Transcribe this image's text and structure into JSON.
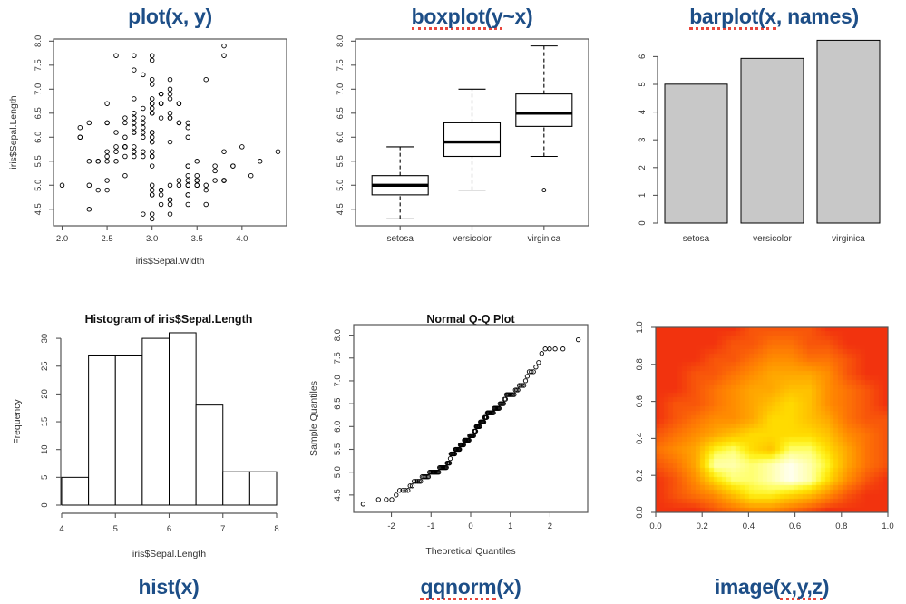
{
  "colors": {
    "title_blue": "#1d4e87",
    "underline_red": "#e8453b",
    "axis_line": "#555555",
    "tick_text": "#333333",
    "bar_gray": "#c8c8c8",
    "heat_palette": [
      "#f2330e",
      "#f8560a",
      "#fd7305",
      "#ff8d00",
      "#ffa700",
      "#ffc100",
      "#ffdb00",
      "#fff320",
      "#ffff70",
      "#ffffae",
      "#fffff0"
    ]
  },
  "captions": [
    {
      "pre": "plot(x, y)",
      "mid": "",
      "post": ""
    },
    {
      "pre": "",
      "mid": "boxplot(y",
      "post": "~x)"
    },
    {
      "pre": "",
      "mid": "barplot(x",
      "post": ", names)"
    },
    {
      "pre": "hist(x)",
      "mid": "",
      "post": ""
    },
    {
      "pre": "",
      "mid": "qqnorm",
      "post": "(x)"
    },
    {
      "pre": "image(",
      "mid": "x,y,z",
      "post": ")"
    }
  ],
  "chart_data": [
    {
      "type": "scatter",
      "title": "plot(x, y)",
      "xlabel": "iris$Sepal.Width",
      "ylabel": "iris$Sepal.Length",
      "xlim": [
        1.904,
        4.496
      ],
      "ylim": [
        4.156,
        8.044
      ],
      "xticks": [
        2.0,
        2.5,
        3.0,
        3.5,
        4.0
      ],
      "xtick_labels": [
        "2.0",
        "2.5",
        "3.0",
        "3.5",
        "4.0"
      ],
      "yticks": [
        4.5,
        5.0,
        5.5,
        6.0,
        6.5,
        7.0,
        7.5,
        8.0
      ],
      "ytick_labels": [
        "4.5",
        "5.0",
        "5.5",
        "6.0",
        "6.5",
        "7.0",
        "7.5",
        "8.0"
      ],
      "x": [
        3.5,
        3.0,
        3.2,
        3.1,
        3.6,
        3.9,
        3.4,
        3.4,
        2.9,
        3.1,
        3.7,
        3.4,
        3.0,
        3.0,
        4.0,
        4.4,
        3.9,
        3.5,
        3.8,
        3.8,
        3.4,
        3.7,
        3.6,
        3.3,
        3.4,
        3.0,
        3.4,
        3.5,
        3.4,
        3.2,
        3.1,
        3.4,
        4.1,
        4.2,
        3.1,
        3.2,
        3.5,
        3.6,
        3.0,
        3.4,
        3.5,
        2.3,
        3.2,
        3.5,
        3.8,
        3.0,
        3.8,
        3.2,
        3.7,
        3.3,
        3.2,
        3.2,
        3.1,
        2.3,
        2.8,
        2.8,
        3.3,
        2.4,
        2.9,
        2.7,
        2.0,
        3.0,
        2.2,
        2.9,
        2.9,
        3.1,
        3.0,
        2.7,
        2.2,
        2.5,
        3.2,
        2.8,
        2.5,
        2.8,
        2.9,
        3.0,
        2.8,
        3.0,
        2.9,
        2.6,
        2.4,
        2.4,
        2.7,
        2.7,
        3.0,
        3.4,
        3.1,
        2.3,
        3.0,
        2.5,
        2.6,
        3.0,
        2.6,
        2.3,
        2.7,
        3.0,
        2.9,
        2.9,
        2.5,
        2.8,
        3.3,
        2.7,
        3.0,
        2.9,
        3.0,
        3.0,
        2.5,
        2.9,
        2.5,
        3.6,
        3.2,
        2.7,
        3.0,
        2.5,
        2.8,
        3.2,
        3.0,
        3.8,
        2.6,
        2.2,
        3.2,
        2.8,
        2.8,
        2.7,
        3.3,
        3.2,
        2.8,
        3.0,
        2.8,
        3.0,
        2.8,
        3.8,
        2.8,
        2.8,
        2.6,
        3.0,
        3.4,
        3.1,
        3.0,
        3.1,
        3.1,
        3.1,
        2.7,
        3.2,
        3.3,
        3.0,
        2.5,
        3.0,
        3.4,
        3.0
      ],
      "y": [
        5.1,
        4.9,
        4.7,
        4.6,
        5.0,
        5.4,
        4.6,
        5.0,
        4.4,
        4.9,
        5.4,
        4.8,
        4.8,
        4.3,
        5.8,
        5.7,
        5.4,
        5.1,
        5.7,
        5.1,
        5.4,
        5.1,
        4.6,
        5.1,
        4.8,
        5.0,
        5.0,
        5.2,
        5.2,
        4.7,
        4.8,
        5.4,
        5.2,
        5.5,
        4.9,
        5.0,
        5.5,
        4.9,
        4.4,
        5.1,
        5.0,
        4.5,
        4.4,
        5.0,
        5.1,
        4.8,
        5.1,
        4.6,
        5.3,
        5.0,
        7.0,
        6.4,
        6.9,
        5.5,
        6.5,
        5.7,
        6.3,
        4.9,
        6.6,
        5.2,
        5.0,
        5.9,
        6.0,
        6.1,
        5.6,
        6.7,
        5.6,
        5.8,
        6.2,
        5.6,
        5.9,
        6.1,
        6.3,
        6.1,
        6.4,
        6.6,
        6.8,
        6.7,
        6.0,
        5.7,
        5.5,
        5.5,
        5.8,
        6.0,
        5.4,
        6.0,
        6.7,
        6.3,
        5.6,
        5.5,
        5.5,
        6.1,
        5.8,
        5.0,
        5.6,
        5.7,
        5.7,
        6.2,
        5.1,
        5.7,
        6.3,
        5.8,
        7.1,
        6.3,
        6.5,
        7.6,
        4.9,
        7.3,
        6.7,
        7.2,
        6.5,
        6.4,
        6.8,
        5.7,
        5.8,
        6.4,
        6.5,
        7.7,
        7.7,
        6.0,
        6.9,
        5.6,
        7.7,
        6.3,
        6.7,
        7.2,
        6.2,
        6.1,
        6.4,
        7.2,
        7.4,
        7.9,
        6.4,
        6.3,
        6.1,
        7.7,
        6.3,
        6.4,
        6.0,
        6.9,
        6.7,
        6.9,
        5.8,
        6.8,
        6.7,
        6.7,
        6.3,
        6.5,
        6.2,
        5.9
      ]
    },
    {
      "type": "box",
      "title": "boxplot(y~x)",
      "categories": [
        "setosa",
        "versicolor",
        "virginica"
      ],
      "ylim": [
        4.156,
        8.044
      ],
      "yticks": [
        4.5,
        5.0,
        5.5,
        6.0,
        6.5,
        7.0,
        7.5,
        8.0
      ],
      "ytick_labels": [
        "4.5",
        "5.0",
        "5.5",
        "6.0",
        "6.5",
        "7.0",
        "7.5",
        "8.0"
      ],
      "stats": [
        {
          "low": 4.3,
          "q1": 4.8,
          "med": 5.0,
          "q3": 5.2,
          "high": 5.8,
          "outliers": []
        },
        {
          "low": 4.9,
          "q1": 5.6,
          "med": 5.9,
          "q3": 6.3,
          "high": 7.0,
          "outliers": []
        },
        {
          "low": 5.6,
          "q1": 6.225,
          "med": 6.5,
          "q3": 6.9,
          "high": 7.9,
          "outliers": [
            4.9
          ]
        }
      ]
    },
    {
      "type": "bar",
      "title": "barplot(x, names)",
      "categories": [
        "setosa",
        "versicolor",
        "virginica"
      ],
      "values": [
        5.006,
        5.936,
        6.588
      ],
      "yticks": [
        0,
        1,
        2,
        3,
        4,
        5,
        6
      ],
      "ytick_labels": [
        "0",
        "1",
        "2",
        "3",
        "4",
        "5",
        "6"
      ],
      "ylim": [
        0,
        6.85
      ]
    },
    {
      "type": "hist",
      "title": "Histogram of iris$Sepal.Length",
      "xlabel": "iris$Sepal.Length",
      "ylabel": "Frequency",
      "breaks": [
        4,
        4.5,
        5,
        5.5,
        6,
        6.5,
        7,
        7.5,
        8
      ],
      "counts": [
        5,
        27,
        27,
        30,
        31,
        18,
        6,
        6
      ],
      "xticks": [
        4,
        5,
        6,
        7,
        8
      ],
      "xtick_labels": [
        "4",
        "5",
        "6",
        "7",
        "8"
      ],
      "yticks": [
        0,
        5,
        10,
        15,
        20,
        25,
        30
      ],
      "ytick_labels": [
        "0",
        "5",
        "10",
        "15",
        "20",
        "25",
        "30"
      ],
      "ylim": [
        0,
        31
      ]
    },
    {
      "type": "qq",
      "title": "Normal Q-Q Plot",
      "xlabel": "Theoretical Quantiles",
      "ylabel": "Sample Quantiles",
      "xlim": [
        -2.95,
        2.95
      ],
      "ylim": [
        4.12,
        8.23
      ],
      "xticks": [
        -2,
        -1,
        0,
        1,
        2
      ],
      "xtick_labels": [
        "-2",
        "-1",
        "0",
        "1",
        "2"
      ],
      "yticks": [
        4.5,
        5.0,
        5.5,
        6.0,
        6.5,
        7.0,
        7.5,
        8.0
      ],
      "ytick_labels": [
        "4.5",
        "5.0",
        "5.5",
        "6.0",
        "6.5",
        "7.0",
        "7.5",
        "8.0"
      ],
      "sample": [
        5.1,
        4.9,
        4.7,
        4.6,
        5.0,
        5.4,
        4.6,
        5.0,
        4.4,
        4.9,
        5.4,
        4.8,
        4.8,
        4.3,
        5.8,
        5.7,
        5.4,
        5.1,
        5.7,
        5.1,
        5.4,
        5.1,
        4.6,
        5.1,
        4.8,
        5.0,
        5.0,
        5.2,
        5.2,
        4.7,
        4.8,
        5.4,
        5.2,
        5.5,
        4.9,
        5.0,
        5.5,
        4.9,
        4.4,
        5.1,
        5.0,
        4.5,
        4.4,
        5.0,
        5.1,
        4.8,
        5.1,
        4.6,
        5.3,
        5.0,
        7.0,
        6.4,
        6.9,
        5.5,
        6.5,
        5.7,
        6.3,
        4.9,
        6.6,
        5.2,
        5.0,
        5.9,
        6.0,
        6.1,
        5.6,
        6.7,
        5.6,
        5.8,
        6.2,
        5.6,
        5.9,
        6.1,
        6.3,
        6.1,
        6.4,
        6.6,
        6.8,
        6.7,
        6.0,
        5.7,
        5.5,
        5.5,
        5.8,
        6.0,
        5.4,
        6.0,
        6.7,
        6.3,
        5.6,
        5.5,
        5.5,
        6.1,
        5.8,
        5.0,
        5.6,
        5.7,
        5.7,
        6.2,
        5.1,
        5.7,
        6.3,
        5.8,
        7.1,
        6.3,
        6.5,
        7.6,
        4.9,
        7.3,
        6.7,
        7.2,
        6.5,
        6.4,
        6.8,
        5.7,
        5.8,
        6.4,
        6.5,
        7.7,
        7.7,
        6.0,
        6.9,
        5.6,
        7.7,
        6.3,
        6.7,
        7.2,
        6.2,
        6.1,
        6.4,
        7.2,
        7.4,
        7.9,
        6.4,
        6.3,
        6.1,
        7.7,
        6.3,
        6.4,
        6.0,
        6.9,
        6.7,
        6.9,
        5.8,
        6.8,
        6.7,
        6.7,
        6.3,
        6.5,
        6.2,
        5.9
      ]
    },
    {
      "type": "heatmap",
      "title": "image(x,y,z)",
      "xlim": [
        0,
        1
      ],
      "ylim": [
        0,
        1
      ],
      "xticks": [
        0,
        0.2,
        0.4,
        0.6,
        0.8,
        1
      ],
      "xtick_labels": [
        "0.0",
        "0.2",
        "0.4",
        "0.6",
        "0.8",
        "1.0"
      ],
      "yticks": [
        0,
        0.2,
        0.4,
        0.6,
        0.8,
        1
      ],
      "ytick_labels": [
        "0.0",
        "0.2",
        "0.4",
        "0.6",
        "0.8",
        "1.0"
      ],
      "z_max": 10,
      "z_rows_top_to_bottom": [
        [
          0,
          0,
          0,
          0,
          0,
          1,
          1,
          1,
          1,
          0,
          0,
          0,
          0
        ],
        [
          0,
          0,
          0,
          0,
          1,
          1,
          2,
          2,
          1,
          1,
          0,
          0,
          0
        ],
        [
          0,
          0,
          0,
          1,
          1,
          2,
          3,
          3,
          2,
          2,
          1,
          0,
          0
        ],
        [
          0,
          0,
          1,
          1,
          2,
          3,
          4,
          4,
          4,
          3,
          1,
          0,
          0
        ],
        [
          0,
          0,
          1,
          2,
          3,
          4,
          4,
          5,
          5,
          3,
          2,
          1,
          0
        ],
        [
          0,
          1,
          1,
          2,
          3,
          4,
          5,
          6,
          5,
          3,
          2,
          1,
          0
        ],
        [
          0,
          1,
          2,
          3,
          3,
          4,
          6,
          6,
          5,
          4,
          2,
          1,
          1
        ],
        [
          1,
          2,
          3,
          4,
          5,
          6,
          6,
          6,
          6,
          5,
          3,
          2,
          1
        ],
        [
          2,
          3,
          4,
          7,
          8,
          6,
          5,
          8,
          8,
          6,
          4,
          2,
          1
        ],
        [
          1,
          2,
          4,
          9,
          9,
          8,
          9,
          10,
          9,
          7,
          4,
          2,
          1
        ],
        [
          0,
          1,
          3,
          6,
          8,
          8,
          9,
          10,
          9,
          6,
          3,
          1,
          0
        ],
        [
          0,
          1,
          2,
          3,
          5,
          7,
          7,
          6,
          5,
          3,
          1,
          0,
          0
        ],
        [
          0,
          0,
          0,
          1,
          2,
          3,
          3,
          2,
          1,
          0,
          0,
          0,
          0
        ]
      ]
    }
  ]
}
